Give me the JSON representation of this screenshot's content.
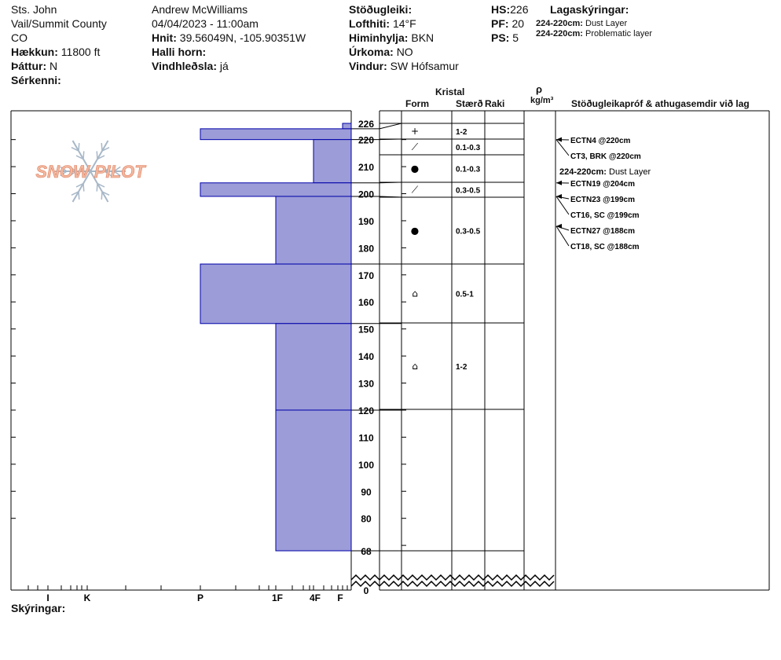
{
  "header": {
    "col1": {
      "location": "Sts. John",
      "zone": "Vail/Summit County",
      "state": "CO",
      "elevation_label": "Hækkun:",
      "elevation_value": "11800 ft",
      "aspect_label": "Þáttur:",
      "aspect_value": "N",
      "specifics_label": "Sérkenni:"
    },
    "col2": {
      "observer": "Andrew McWilliams",
      "datetime": "04/04/2023 - 11:00am",
      "coords_label": "Hnit:",
      "coords_value": "39.56049N, -105.90351W",
      "slope_label": "Halli horn:",
      "wind_loading_label": "Vindhleðsla:",
      "wind_loading_value": "já"
    },
    "col3": {
      "stability_label": "Stöðugleiki:",
      "airtemp_label": "Lofthiti:",
      "airtemp_value": "14°F",
      "sky_label": "Himinhylja:",
      "sky_value": "BKN",
      "precip_label": "Úrkoma:",
      "precip_value": "NO",
      "wind_label": "Vindur:",
      "wind_value": "SW Hófsamur"
    },
    "col4": {
      "hs_label": "HS:",
      "hs_value": "226",
      "pf_label": "PF:",
      "pf_value": "20",
      "ps_label": "PS:",
      "ps_value": "5"
    },
    "legend": {
      "title": "Lagaskýringar:",
      "items": [
        {
          "range": "224-220cm:",
          "text": "Dust Layer"
        },
        {
          "range": "224-220cm:",
          "text": "Problematic layer"
        }
      ]
    }
  },
  "logo": {
    "text": "SNOW PILOT"
  },
  "columns": {
    "crystal": "Kristal",
    "form": "Form",
    "size": "Stærð",
    "moisture": "Raki",
    "rho": "ρ",
    "density_unit": "kg/m³",
    "tests": "Stöðugleikapróf & athugasemdir við lag"
  },
  "hardness_axis": {
    "labels": [
      "I",
      "K",
      "P",
      "1F",
      "4F",
      "F"
    ]
  },
  "depth_axis": {
    "labels": [
      "226",
      "220",
      "210",
      "200",
      "190",
      "180",
      "170",
      "160",
      "150",
      "140",
      "130",
      "120",
      "110",
      "100",
      "90",
      "80",
      "68",
      "0"
    ]
  },
  "footer": {
    "comments_label": "Skýringar:"
  },
  "colors": {
    "layer_fill": "#9c9cd8",
    "layer_stroke": "#0000aa",
    "logo": "#f2b8a0",
    "flake": "#a8b8c8"
  },
  "chart_data": {
    "type": "snow-profile",
    "total_depth_cm": 226,
    "axis_visible_range_cm": [
      68,
      226
    ],
    "hardness_scale": [
      "F",
      "4F",
      "1F",
      "P",
      "K",
      "I"
    ],
    "layers": [
      {
        "top": 226,
        "bottom": 224,
        "hardness": "F",
        "form": "",
        "size": ""
      },
      {
        "top": 224,
        "bottom": 220,
        "hardness": "P",
        "form": "+",
        "size": "1-2"
      },
      {
        "top": 220,
        "bottom": 204,
        "hardness": "4F",
        "form": "⟋",
        "size": "0.1-0.3"
      },
      {
        "top": 204,
        "bottom": 199,
        "hardness": "P",
        "form": "●",
        "size": "0.1-0.3"
      },
      {
        "top": 199,
        "bottom": 174,
        "hardness": "1F",
        "form": "⟋",
        "size": "0.3-0.5"
      },
      {
        "top": 174,
        "bottom": 152,
        "hardness": "P",
        "form": "●",
        "size": "0.3-0.5"
      },
      {
        "top": 152,
        "bottom": 120,
        "hardness": "1F",
        "form": "⌂",
        "size": "0.5-1"
      },
      {
        "top": 120,
        "bottom": 0,
        "hardness": "1F",
        "form": "⌂",
        "size": "1-2"
      }
    ],
    "tests": [
      {
        "depth": 220,
        "text": "ECTN4 @220cm"
      },
      {
        "depth": 220,
        "text": "CT3, BRK @220cm"
      },
      {
        "depth": null,
        "range": "224-220cm:",
        "text": "Dust Layer"
      },
      {
        "depth": 204,
        "text": "ECTN19 @204cm"
      },
      {
        "depth": 199,
        "text": "ECTN23 @199cm"
      },
      {
        "depth": 199,
        "text": "CT16, SC @199cm"
      },
      {
        "depth": 188,
        "text": "ECTN27 @188cm"
      },
      {
        "depth": 188,
        "text": "CT18, SC @188cm"
      }
    ]
  }
}
